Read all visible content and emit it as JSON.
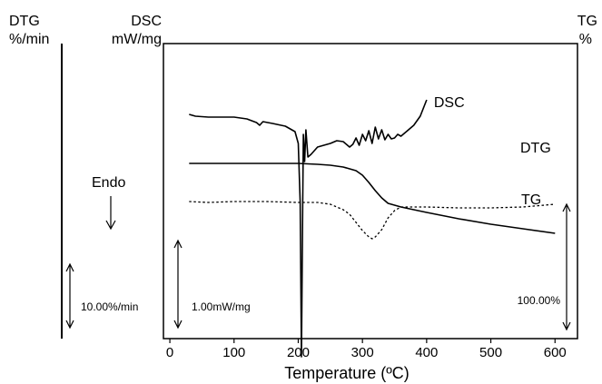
{
  "chart_data": {
    "type": "line",
    "xlabel": "Temperature (ºC)",
    "xlim": [
      -10,
      635
    ],
    "x_ticks": [
      "0",
      "100",
      "200",
      "300",
      "400",
      "500",
      "600"
    ],
    "axis_labels": {
      "dtg": {
        "name": "DTG",
        "unit": "%/min"
      },
      "dsc": {
        "name": "DSC",
        "unit": "mW/mg"
      },
      "tg": {
        "name": "TG",
        "unit": "%"
      }
    },
    "scale_bars": {
      "dtg": "10.00%/min",
      "dsc": "1.00mW/mg",
      "tg": "100.00%"
    },
    "annotations": {
      "endo": "Endo"
    },
    "series": [
      {
        "name": "DSC",
        "style": "solid",
        "x": [
          30,
          40,
          60,
          80,
          100,
          120,
          135,
          140,
          145,
          160,
          180,
          195,
          200,
          203,
          205,
          207,
          208,
          210,
          212,
          215,
          220,
          230,
          240,
          250,
          260,
          270,
          280,
          285,
          290,
          295,
          300,
          305,
          310,
          315,
          320,
          325,
          330,
          335,
          340,
          345,
          350,
          355,
          360,
          370,
          380,
          390,
          400
        ],
        "y": [
          78,
          80,
          81,
          81,
          81,
          83,
          87,
          90,
          86,
          88,
          91,
          97,
          110,
          175,
          345,
          175,
          100,
          130,
          95,
          125,
          122,
          114,
          112,
          110,
          107,
          108,
          114,
          111,
          104,
          112,
          100,
          107,
          96,
          110,
          92,
          105,
          95,
          106,
          100,
          105,
          104,
          100,
          102,
          96,
          90,
          80,
          62
        ]
      },
      {
        "name": "TG",
        "style": "solid",
        "x": [
          30,
          100,
          150,
          200,
          230,
          250,
          270,
          290,
          300,
          310,
          320,
          330,
          340,
          350,
          360,
          380,
          400,
          450,
          500,
          550,
          600
        ],
        "y": [
          132,
          132,
          132,
          132,
          133,
          134,
          136,
          140,
          145,
          153,
          162,
          170,
          176,
          178,
          180,
          183,
          186,
          193,
          199,
          204,
          209
        ]
      },
      {
        "name": "DTG",
        "style": "dotted",
        "x": [
          30,
          60,
          100,
          150,
          200,
          230,
          250,
          260,
          270,
          280,
          290,
          300,
          310,
          315,
          320,
          330,
          340,
          350,
          360,
          400,
          450,
          500,
          550,
          600
        ],
        "y": [
          174,
          175,
          174,
          174,
          175,
          175,
          177,
          180,
          183,
          188,
          197,
          206,
          213,
          215,
          213,
          205,
          192,
          184,
          180,
          180,
          181,
          181,
          180,
          177
        ]
      }
    ]
  }
}
